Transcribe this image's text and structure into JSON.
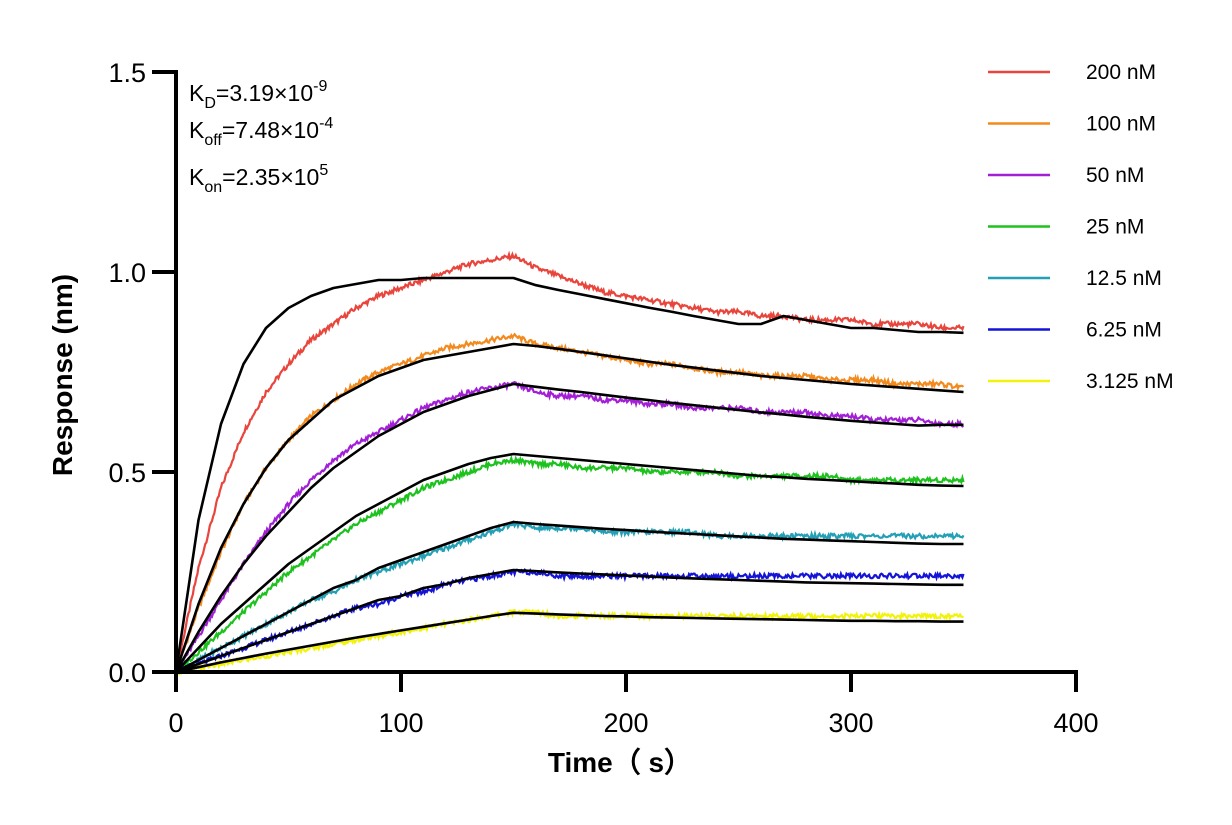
{
  "chart_data": {
    "type": "line",
    "title": "",
    "xlabel": "Time（ s）",
    "ylabel": "Response (nm)",
    "xlim": [
      0,
      400
    ],
    "ylim": [
      0,
      1.5
    ],
    "xticks": [
      "0",
      "100",
      "200",
      "300",
      "400"
    ],
    "yticks": [
      "0.0",
      "0.5",
      "1.0",
      "1.5"
    ],
    "grid": false,
    "legend_position": "top-right",
    "annotations": {
      "kd": {
        "label": "K",
        "sub": "D",
        "value": "=3.19×10",
        "exp": "-9"
      },
      "koff": {
        "label": "K",
        "sub": "off",
        "value": "=7.48×10",
        "exp": "-4"
      },
      "kon": {
        "label": "K",
        "sub": "on",
        "value": "=2.35×10",
        "exp": "5"
      }
    },
    "fit_color": "#000000",
    "series": [
      {
        "name": "200 nM",
        "color": "#e8453c",
        "x": [
          0,
          10,
          20,
          30,
          40,
          50,
          60,
          70,
          80,
          90,
          100,
          110,
          120,
          130,
          140,
          150,
          160,
          170,
          180,
          190,
          200,
          210,
          220,
          230,
          240,
          250,
          260,
          270,
          280,
          290,
          300,
          310,
          320,
          330,
          340,
          350
        ],
        "y": [
          0,
          0.26,
          0.46,
          0.6,
          0.7,
          0.77,
          0.83,
          0.87,
          0.91,
          0.94,
          0.96,
          0.98,
          1.0,
          1.02,
          1.03,
          1.04,
          1.01,
          0.99,
          0.97,
          0.95,
          0.94,
          0.93,
          0.92,
          0.91,
          0.9,
          0.9,
          0.89,
          0.89,
          0.88,
          0.88,
          0.88,
          0.87,
          0.87,
          0.87,
          0.86,
          0.86
        ],
        "fit": [
          0,
          0.38,
          0.62,
          0.77,
          0.86,
          0.91,
          0.94,
          0.96,
          0.97,
          0.98,
          0.98,
          0.985,
          0.985,
          0.985,
          0.985,
          0.985,
          0.967,
          0.955,
          0.944,
          0.933,
          0.922,
          0.911,
          0.901,
          0.89,
          0.88,
          0.87,
          0.87,
          0.89,
          0.88,
          0.87,
          0.86,
          0.86,
          0.855,
          0.85,
          0.85,
          0.848
        ]
      },
      {
        "name": "100 nM",
        "color": "#f28a1e",
        "x": [
          0,
          10,
          20,
          30,
          40,
          50,
          60,
          70,
          80,
          90,
          100,
          110,
          120,
          130,
          140,
          150,
          160,
          170,
          180,
          190,
          200,
          210,
          220,
          230,
          240,
          250,
          260,
          270,
          280,
          290,
          300,
          310,
          320,
          330,
          340,
          350
        ],
        "y": [
          0,
          0.16,
          0.3,
          0.42,
          0.51,
          0.58,
          0.64,
          0.68,
          0.72,
          0.75,
          0.77,
          0.79,
          0.81,
          0.82,
          0.83,
          0.84,
          0.82,
          0.81,
          0.8,
          0.79,
          0.78,
          0.77,
          0.77,
          0.76,
          0.75,
          0.75,
          0.74,
          0.74,
          0.74,
          0.73,
          0.73,
          0.73,
          0.72,
          0.72,
          0.72,
          0.71
        ],
        "fit": [
          0,
          0.17,
          0.31,
          0.42,
          0.51,
          0.58,
          0.63,
          0.68,
          0.71,
          0.74,
          0.76,
          0.78,
          0.79,
          0.8,
          0.81,
          0.82,
          0.815,
          0.808,
          0.8,
          0.792,
          0.784,
          0.776,
          0.768,
          0.761,
          0.754,
          0.747,
          0.74,
          0.735,
          0.73,
          0.725,
          0.72,
          0.716,
          0.712,
          0.708,
          0.704,
          0.7
        ]
      },
      {
        "name": "50 nM",
        "color": "#a21fd6",
        "x": [
          0,
          10,
          20,
          30,
          40,
          50,
          60,
          70,
          80,
          90,
          100,
          110,
          120,
          130,
          140,
          150,
          160,
          170,
          180,
          190,
          200,
          210,
          220,
          230,
          240,
          250,
          260,
          270,
          280,
          290,
          300,
          310,
          320,
          330,
          340,
          350
        ],
        "y": [
          0,
          0.09,
          0.18,
          0.27,
          0.35,
          0.42,
          0.48,
          0.53,
          0.57,
          0.6,
          0.63,
          0.66,
          0.68,
          0.7,
          0.71,
          0.72,
          0.7,
          0.69,
          0.69,
          0.68,
          0.68,
          0.67,
          0.67,
          0.66,
          0.66,
          0.66,
          0.65,
          0.65,
          0.65,
          0.64,
          0.64,
          0.63,
          0.63,
          0.63,
          0.62,
          0.62
        ],
        "fit": [
          0,
          0.1,
          0.19,
          0.27,
          0.34,
          0.4,
          0.46,
          0.51,
          0.55,
          0.59,
          0.62,
          0.65,
          0.67,
          0.69,
          0.705,
          0.72,
          0.713,
          0.706,
          0.7,
          0.693,
          0.686,
          0.68,
          0.673,
          0.667,
          0.661,
          0.655,
          0.649,
          0.644,
          0.638,
          0.633,
          0.628,
          0.624,
          0.62,
          0.616,
          0.618,
          0.618
        ]
      },
      {
        "name": "25 nM",
        "color": "#1ec21e",
        "x": [
          0,
          10,
          20,
          30,
          40,
          50,
          60,
          70,
          80,
          90,
          100,
          110,
          120,
          130,
          140,
          150,
          160,
          170,
          180,
          190,
          200,
          210,
          220,
          230,
          240,
          250,
          260,
          270,
          280,
          290,
          300,
          310,
          320,
          330,
          340,
          350
        ],
        "y": [
          0,
          0.05,
          0.1,
          0.15,
          0.2,
          0.25,
          0.29,
          0.33,
          0.37,
          0.4,
          0.43,
          0.46,
          0.48,
          0.5,
          0.52,
          0.53,
          0.52,
          0.52,
          0.51,
          0.51,
          0.51,
          0.5,
          0.5,
          0.5,
          0.5,
          0.49,
          0.49,
          0.49,
          0.49,
          0.49,
          0.48,
          0.48,
          0.48,
          0.48,
          0.48,
          0.48
        ],
        "fit": [
          0,
          0.06,
          0.12,
          0.17,
          0.22,
          0.27,
          0.31,
          0.35,
          0.39,
          0.42,
          0.45,
          0.48,
          0.5,
          0.52,
          0.535,
          0.545,
          0.54,
          0.535,
          0.53,
          0.525,
          0.52,
          0.515,
          0.51,
          0.505,
          0.5,
          0.495,
          0.49,
          0.487,
          0.483,
          0.48,
          0.477,
          0.474,
          0.471,
          0.468,
          0.466,
          0.465
        ]
      },
      {
        "name": "12.5 nM",
        "color": "#23a0b5",
        "x": [
          0,
          10,
          20,
          30,
          40,
          50,
          60,
          70,
          80,
          90,
          100,
          110,
          120,
          130,
          140,
          150,
          160,
          170,
          180,
          190,
          200,
          210,
          220,
          230,
          240,
          250,
          260,
          270,
          280,
          290,
          300,
          310,
          320,
          330,
          340,
          350
        ],
        "y": [
          0,
          0.03,
          0.06,
          0.09,
          0.12,
          0.15,
          0.18,
          0.2,
          0.23,
          0.25,
          0.27,
          0.29,
          0.31,
          0.33,
          0.35,
          0.37,
          0.36,
          0.36,
          0.36,
          0.35,
          0.35,
          0.35,
          0.35,
          0.35,
          0.34,
          0.34,
          0.34,
          0.34,
          0.34,
          0.34,
          0.34,
          0.34,
          0.34,
          0.34,
          0.34,
          0.34
        ],
        "fit": [
          0,
          0.03,
          0.06,
          0.09,
          0.12,
          0.15,
          0.18,
          0.21,
          0.23,
          0.26,
          0.28,
          0.3,
          0.32,
          0.34,
          0.36,
          0.375,
          0.37,
          0.366,
          0.362,
          0.358,
          0.355,
          0.351,
          0.348,
          0.345,
          0.342,
          0.339,
          0.336,
          0.333,
          0.331,
          0.329,
          0.327,
          0.325,
          0.323,
          0.321,
          0.32,
          0.32
        ]
      },
      {
        "name": "6.25 nM",
        "color": "#1414d8",
        "x": [
          0,
          10,
          20,
          30,
          40,
          50,
          60,
          70,
          80,
          90,
          100,
          110,
          120,
          130,
          140,
          150,
          160,
          170,
          180,
          190,
          200,
          210,
          220,
          230,
          240,
          250,
          260,
          270,
          280,
          290,
          300,
          310,
          320,
          330,
          340,
          350
        ],
        "y": [
          0,
          0.02,
          0.04,
          0.06,
          0.08,
          0.1,
          0.12,
          0.14,
          0.16,
          0.17,
          0.19,
          0.2,
          0.22,
          0.23,
          0.24,
          0.25,
          0.25,
          0.24,
          0.24,
          0.24,
          0.24,
          0.24,
          0.24,
          0.24,
          0.24,
          0.24,
          0.24,
          0.24,
          0.24,
          0.24,
          0.24,
          0.24,
          0.24,
          0.24,
          0.24,
          0.24
        ],
        "fit": [
          0,
          0.02,
          0.04,
          0.06,
          0.08,
          0.1,
          0.12,
          0.14,
          0.16,
          0.18,
          0.19,
          0.21,
          0.22,
          0.235,
          0.245,
          0.255,
          0.252,
          0.249,
          0.246,
          0.244,
          0.241,
          0.239,
          0.236,
          0.234,
          0.232,
          0.23,
          0.228,
          0.226,
          0.224,
          0.223,
          0.222,
          0.221,
          0.22,
          0.219,
          0.218,
          0.218
        ]
      },
      {
        "name": "3.125 nM",
        "color": "#f2f20a",
        "x": [
          0,
          10,
          20,
          30,
          40,
          50,
          60,
          70,
          80,
          90,
          100,
          110,
          120,
          130,
          140,
          150,
          160,
          170,
          180,
          190,
          200,
          210,
          220,
          230,
          240,
          250,
          260,
          270,
          280,
          290,
          300,
          310,
          320,
          330,
          340,
          350
        ],
        "y": [
          0,
          0.01,
          0.02,
          0.03,
          0.04,
          0.05,
          0.06,
          0.07,
          0.08,
          0.09,
          0.1,
          0.11,
          0.12,
          0.13,
          0.14,
          0.15,
          0.15,
          0.14,
          0.14,
          0.14,
          0.14,
          0.14,
          0.14,
          0.14,
          0.14,
          0.14,
          0.14,
          0.14,
          0.14,
          0.14,
          0.14,
          0.14,
          0.14,
          0.14,
          0.14,
          0.14
        ],
        "fit": [
          0,
          0.012,
          0.024,
          0.035,
          0.046,
          0.056,
          0.066,
          0.076,
          0.086,
          0.095,
          0.104,
          0.113,
          0.122,
          0.131,
          0.14,
          0.148,
          0.146,
          0.144,
          0.142,
          0.14,
          0.139,
          0.137,
          0.136,
          0.135,
          0.134,
          0.133,
          0.132,
          0.131,
          0.13,
          0.129,
          0.128,
          0.128,
          0.127,
          0.127,
          0.126,
          0.126
        ]
      }
    ]
  }
}
